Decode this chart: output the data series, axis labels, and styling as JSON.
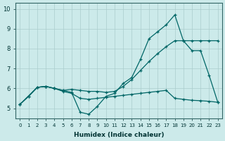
{
  "xlabel": "Humidex (Indice chaleur)",
  "background_color": "#cceaea",
  "grid_color": "#aacccc",
  "line_color": "#006666",
  "xlim": [
    -0.5,
    23.5
  ],
  "ylim": [
    4.5,
    10.3
  ],
  "xticks": [
    0,
    1,
    2,
    3,
    4,
    5,
    6,
    7,
    8,
    9,
    10,
    11,
    12,
    13,
    14,
    15,
    16,
    17,
    18,
    19,
    20,
    21,
    22,
    23
  ],
  "yticks": [
    5,
    6,
    7,
    8,
    9,
    10
  ],
  "line1_x": [
    0,
    1,
    2,
    3,
    4,
    5,
    6,
    7,
    8,
    9,
    10,
    11,
    12,
    13,
    14,
    15,
    16,
    17,
    18,
    19,
    20,
    21,
    22,
    23
  ],
  "line1_y": [
    5.2,
    5.6,
    6.05,
    6.1,
    6.0,
    5.9,
    5.8,
    4.8,
    4.7,
    5.1,
    5.6,
    5.75,
    6.25,
    6.55,
    7.45,
    8.5,
    8.85,
    9.2,
    9.7,
    8.4,
    7.9,
    7.9,
    6.65,
    5.3
  ],
  "line2_x": [
    0,
    2,
    3,
    4,
    5,
    6,
    7,
    8,
    9,
    10,
    11,
    12,
    13,
    14,
    15,
    16,
    17,
    18,
    19,
    20,
    21,
    22,
    23
  ],
  "line2_y": [
    5.2,
    6.05,
    6.1,
    6.0,
    5.9,
    5.95,
    5.9,
    5.85,
    5.85,
    5.8,
    5.85,
    6.1,
    6.45,
    6.9,
    7.35,
    7.75,
    8.1,
    8.4,
    8.4,
    8.4,
    8.4,
    8.4,
    8.4
  ],
  "line3_x": [
    0,
    1,
    2,
    3,
    4,
    5,
    6,
    7,
    8,
    9,
    10,
    11,
    12,
    13,
    14,
    15,
    16,
    17,
    18,
    19,
    20,
    21,
    22,
    23
  ],
  "line3_y": [
    5.2,
    5.6,
    6.05,
    6.1,
    6.0,
    5.85,
    5.75,
    5.5,
    5.45,
    5.5,
    5.55,
    5.6,
    5.65,
    5.7,
    5.75,
    5.8,
    5.85,
    5.9,
    5.5,
    5.45,
    5.4,
    5.38,
    5.35,
    5.3
  ]
}
